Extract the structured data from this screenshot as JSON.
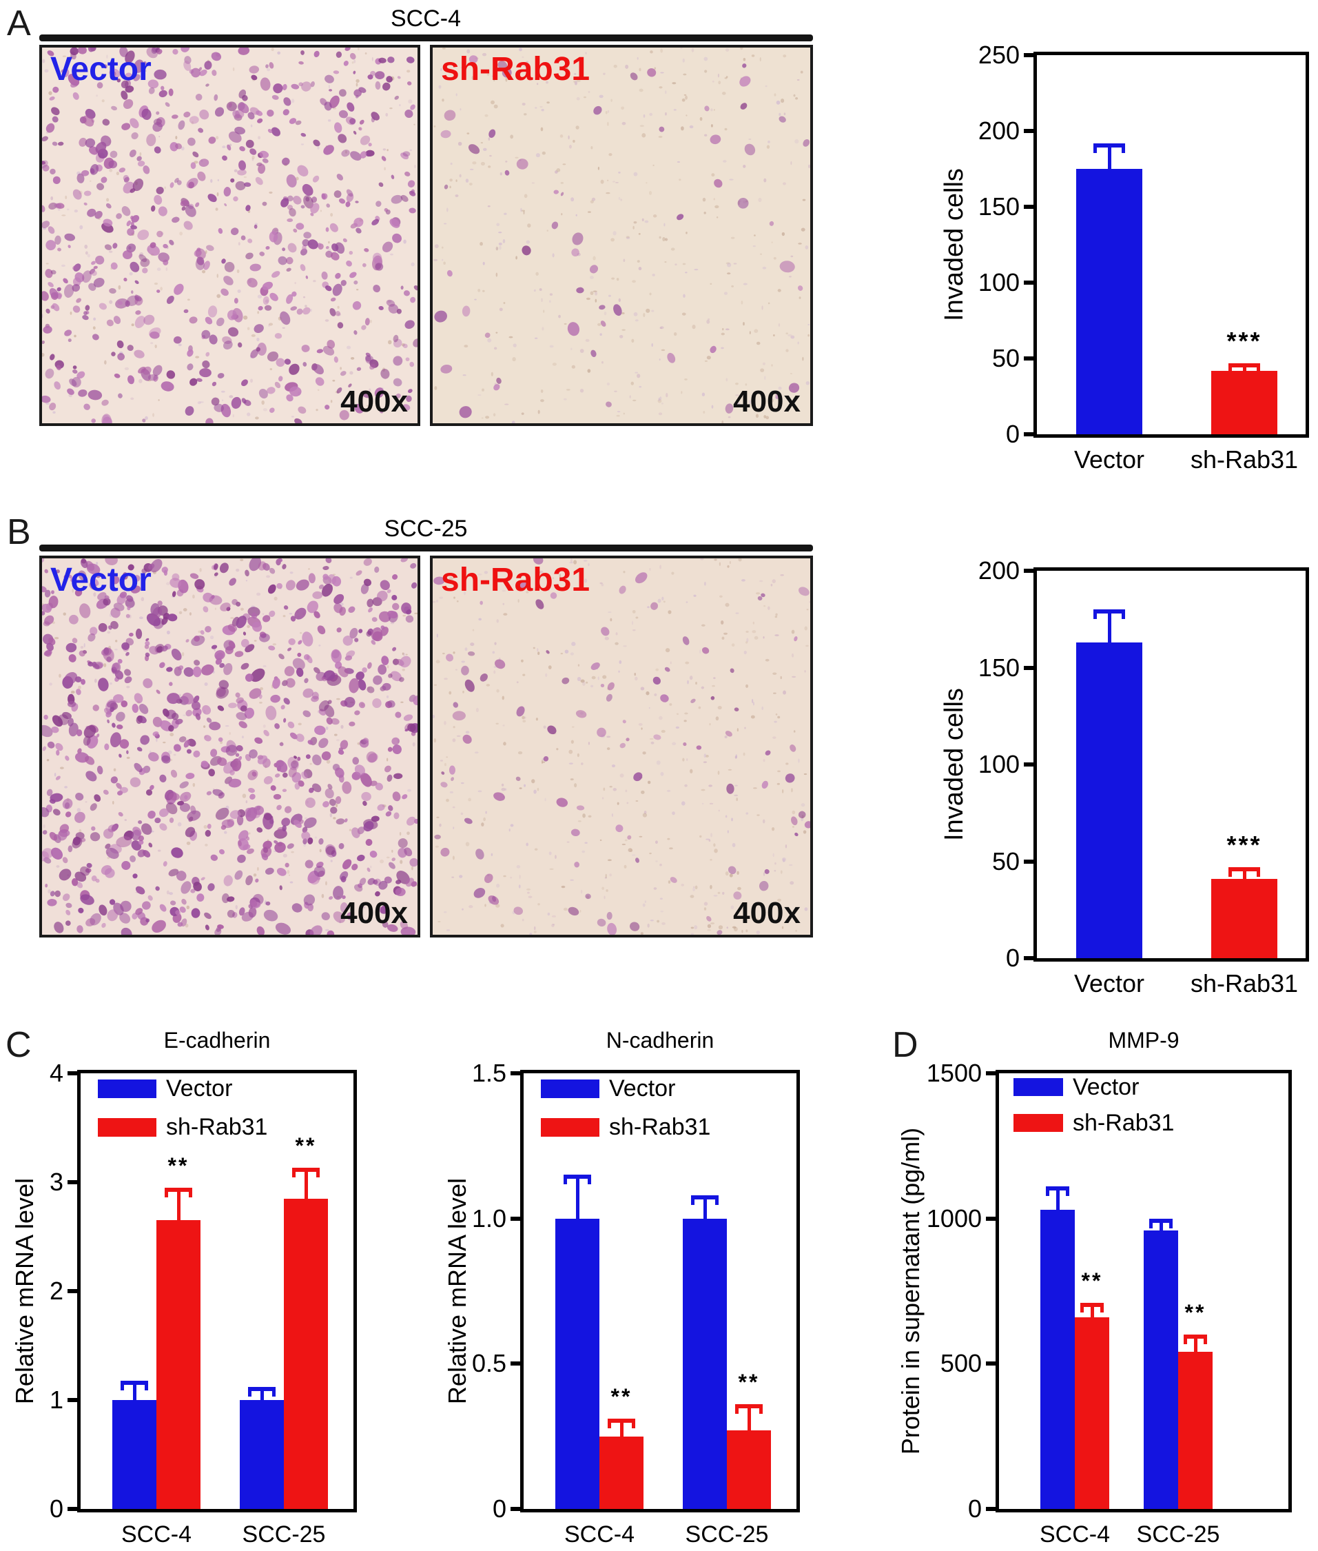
{
  "figure": {
    "panels": [
      {
        "label": "A",
        "title": "SCC-4",
        "micrographs": [
          {
            "label": "Vector",
            "label_color": "#2222e8",
            "magnification": "400x",
            "cell_density": "high",
            "stain": "purple"
          },
          {
            "label": "sh-Rab31",
            "label_color": "#ee1111",
            "magnification": "400x",
            "cell_density": "low",
            "stain": "purple"
          }
        ]
      },
      {
        "label": "B",
        "title": "SCC-25",
        "micrographs": [
          {
            "label": "Vector",
            "label_color": "#2222e8",
            "magnification": "400x",
            "cell_density": "high",
            "stain": "purple"
          },
          {
            "label": "sh-Rab31",
            "label_color": "#ee1111",
            "magnification": "400x",
            "cell_density": "low",
            "stain": "purple"
          }
        ]
      },
      {
        "label": "C"
      },
      {
        "label": "D"
      }
    ]
  },
  "colors": {
    "vector": "#1414e0",
    "sh_rab31": "#ee1414",
    "axis": "#000000"
  },
  "chart_data": [
    {
      "id": "invasion-scc4",
      "type": "bar",
      "title": "",
      "ylabel": "Invaded cells",
      "ylim": [
        0,
        250
      ],
      "yticks": [
        "0",
        "50",
        "100",
        "150",
        "200",
        "250"
      ],
      "grid": false,
      "bars": [
        {
          "label": "Vector",
          "value": 175,
          "error": 17,
          "color": "#1414e0",
          "sig": ""
        },
        {
          "label": "sh-Rab31",
          "value": 42,
          "error": 5,
          "color": "#ee1414",
          "sig": "***"
        }
      ]
    },
    {
      "id": "invasion-scc25",
      "type": "bar",
      "title": "",
      "ylabel": "Invaded cells",
      "ylim": [
        0,
        200
      ],
      "yticks": [
        "0",
        "50",
        "100",
        "150",
        "200"
      ],
      "grid": false,
      "bars": [
        {
          "label": "Vector",
          "value": 163,
          "error": 17,
          "color": "#1414e0",
          "sig": ""
        },
        {
          "label": "sh-Rab31",
          "value": 41,
          "error": 6,
          "color": "#ee1414",
          "sig": "***"
        }
      ]
    },
    {
      "id": "ecadherin-mrna",
      "type": "bar",
      "title": "E-cadherin",
      "ylabel": "Relative mRNA level",
      "ylim": [
        0,
        4
      ],
      "yticks": [
        "0",
        "1",
        "2",
        "3",
        "4"
      ],
      "grid": false,
      "categories": [
        "SCC-4",
        "SCC-25"
      ],
      "legend": true,
      "legend_position": "top-left",
      "series": [
        {
          "name": "Vector",
          "color": "#1414e0",
          "values": [
            1.0,
            1.0
          ],
          "errors": [
            0.18,
            0.12
          ],
          "sig": [
            "",
            ""
          ]
        },
        {
          "name": "sh-Rab31",
          "color": "#ee1414",
          "values": [
            2.65,
            2.85
          ],
          "errors": [
            0.3,
            0.28
          ],
          "sig": [
            "**",
            "**"
          ]
        }
      ]
    },
    {
      "id": "ncadherin-mrna",
      "type": "bar",
      "title": "N-cadherin",
      "ylabel": "Relative mRNA level",
      "ylim": [
        0,
        1.5
      ],
      "yticks": [
        "0",
        "0.5",
        "1.0",
        "1.5"
      ],
      "grid": false,
      "categories": [
        "SCC-4",
        "SCC-25"
      ],
      "legend": true,
      "legend_position": "top-left",
      "series": [
        {
          "name": "Vector",
          "color": "#1414e0",
          "values": [
            1.0,
            1.0
          ],
          "errors": [
            0.15,
            0.08
          ],
          "sig": [
            "",
            ""
          ]
        },
        {
          "name": "sh-Rab31",
          "color": "#ee1414",
          "values": [
            0.25,
            0.27
          ],
          "errors": [
            0.06,
            0.09
          ],
          "sig": [
            "**",
            "**"
          ]
        }
      ]
    },
    {
      "id": "mmp9-elisa",
      "type": "bar",
      "title": "MMP-9",
      "ylabel": "Protein in supernatant (pg/ml)",
      "ylim": [
        0,
        1500
      ],
      "yticks": [
        "0",
        "500",
        "1000",
        "1500"
      ],
      "grid": false,
      "categories": [
        "SCC-4",
        "SCC-25"
      ],
      "legend": true,
      "legend_position": "top-left",
      "series": [
        {
          "name": "Vector",
          "color": "#1414e0",
          "values": [
            1030,
            960
          ],
          "errors": [
            80,
            40
          ],
          "sig": [
            "",
            ""
          ]
        },
        {
          "name": "sh-Rab31",
          "color": "#ee1414",
          "values": [
            660,
            540
          ],
          "errors": [
            50,
            60
          ],
          "sig": [
            "**",
            "**"
          ]
        }
      ]
    }
  ]
}
